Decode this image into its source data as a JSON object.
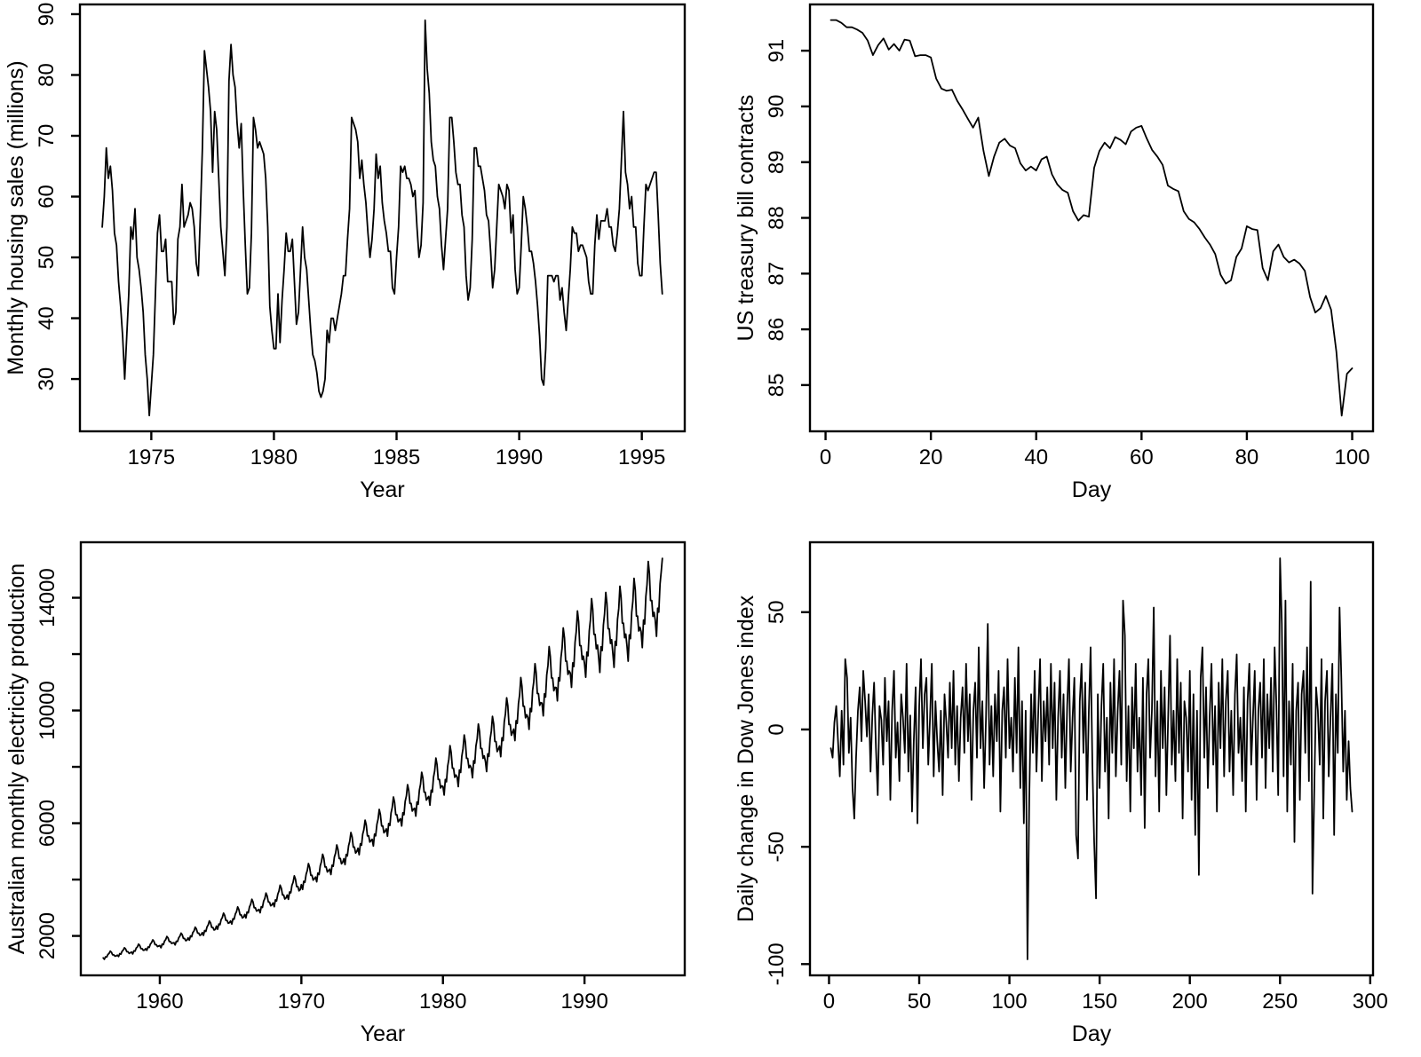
{
  "figure": {
    "background": "#ffffff",
    "line_color": "#000000",
    "tick_font_px": 24,
    "axis_title_font_px": 25
  },
  "chart_data": [
    {
      "type": "line",
      "name": "monthly-housing-sales",
      "title": "",
      "xlabel": "Year",
      "ylabel": "Monthly housing sales (millions)",
      "x_start": 1973.0,
      "x_step": 0.0833333,
      "xlim": [
        1972.09,
        1996.75
      ],
      "ylim": [
        21.4,
        91.6
      ],
      "grid": false,
      "legend": "none",
      "xticks": [
        {
          "v": 1975,
          "l": "1975"
        },
        {
          "v": 1980,
          "l": "1980"
        },
        {
          "v": 1985,
          "l": "1985"
        },
        {
          "v": 1990,
          "l": "1990"
        },
        {
          "v": 1995,
          "l": "1995"
        }
      ],
      "yticks": [
        {
          "v": 30,
          "l": "30"
        },
        {
          "v": 40,
          "l": "40"
        },
        {
          "v": 50,
          "l": "50"
        },
        {
          "v": 60,
          "l": "60"
        },
        {
          "v": 70,
          "l": "70"
        },
        {
          "v": 80,
          "l": "80"
        },
        {
          "v": 90,
          "l": "90"
        }
      ],
      "values": [
        55,
        60,
        68,
        63,
        65,
        61,
        54,
        52,
        46,
        42,
        37,
        30,
        37,
        44,
        55,
        53,
        58,
        50,
        48,
        45,
        41,
        34,
        30,
        24,
        29,
        34,
        44,
        54,
        57,
        51,
        51,
        53,
        46,
        46,
        46,
        39,
        41,
        53,
        55,
        62,
        55,
        56,
        57,
        59,
        58,
        55,
        49,
        47,
        57,
        68,
        84,
        81,
        78,
        74,
        64,
        74,
        71,
        63,
        55,
        51,
        47,
        55,
        79,
        85,
        80,
        78,
        72,
        68,
        72,
        61,
        52,
        44,
        45,
        54,
        73,
        71,
        68,
        69,
        68,
        67,
        63,
        55,
        42,
        38,
        35,
        35,
        44,
        36,
        43,
        48,
        54,
        51,
        51,
        53,
        46,
        39,
        41,
        48,
        55,
        50,
        48,
        43,
        38,
        34,
        33,
        31,
        28,
        27,
        28,
        30,
        38,
        36,
        40,
        40,
        38,
        40,
        42,
        44,
        47,
        47,
        53,
        58,
        73,
        72,
        71,
        69,
        63,
        66,
        62,
        59,
        54,
        50,
        53,
        58,
        67,
        63,
        65,
        59,
        56,
        54,
        51,
        51,
        45,
        44,
        50,
        55,
        65,
        64,
        65,
        63,
        63,
        62,
        60,
        61,
        55,
        50,
        52,
        59,
        89,
        81,
        77,
        69,
        66,
        65,
        60,
        58,
        52,
        48,
        53,
        58,
        73,
        73,
        69,
        64,
        62,
        62,
        57,
        55,
        47,
        43,
        45,
        53,
        68,
        68,
        65,
        65,
        63,
        61,
        57,
        56,
        51,
        45,
        48,
        55,
        62,
        61,
        60,
        58,
        62,
        61,
        54,
        57,
        48,
        44,
        45,
        52,
        60,
        58,
        55,
        51,
        51,
        49,
        46,
        42,
        37,
        30,
        29,
        35,
        47,
        47,
        47,
        46,
        47,
        47,
        43,
        45,
        41,
        38,
        43,
        48,
        55,
        54,
        54,
        51,
        52,
        52,
        51,
        50,
        46,
        44,
        44,
        52,
        57,
        53,
        56,
        56,
        56,
        58,
        55,
        55,
        52,
        51,
        54,
        58,
        66,
        74,
        64,
        62,
        58,
        60,
        55,
        55,
        49,
        47,
        47,
        55,
        62,
        61,
        62,
        63,
        64,
        64,
        57,
        49,
        44
      ]
    },
    {
      "type": "line",
      "name": "us-treasury-bill-contracts",
      "title": "",
      "xlabel": "Day",
      "ylabel": "US treasury bill contracts",
      "x_start": 1,
      "x_step": 1,
      "xlim": [
        -2.96,
        103.96
      ],
      "ylim": [
        84.17,
        91.83
      ],
      "grid": false,
      "legend": "none",
      "xticks": [
        {
          "v": 0,
          "l": "0"
        },
        {
          "v": 20,
          "l": "20"
        },
        {
          "v": 40,
          "l": "40"
        },
        {
          "v": 60,
          "l": "60"
        },
        {
          "v": 80,
          "l": "80"
        },
        {
          "v": 100,
          "l": "100"
        }
      ],
      "yticks": [
        {
          "v": 85,
          "l": "85"
        },
        {
          "v": 86,
          "l": "86"
        },
        {
          "v": 87,
          "l": "87"
        },
        {
          "v": 88,
          "l": "88"
        },
        {
          "v": 89,
          "l": "89"
        },
        {
          "v": 90,
          "l": "90"
        },
        {
          "v": 91,
          "l": "91"
        }
      ],
      "values": [
        91.55,
        91.55,
        91.5,
        91.42,
        91.42,
        91.38,
        91.32,
        91.18,
        90.92,
        91.1,
        91.22,
        91.02,
        91.12,
        91.0,
        91.2,
        91.18,
        90.9,
        90.92,
        90.92,
        90.88,
        90.5,
        90.32,
        90.28,
        90.3,
        90.1,
        89.95,
        89.78,
        89.62,
        89.8,
        89.2,
        88.75,
        89.1,
        89.35,
        89.42,
        89.3,
        89.25,
        88.98,
        88.85,
        88.92,
        88.85,
        89.05,
        89.1,
        88.78,
        88.6,
        88.5,
        88.45,
        88.12,
        87.95,
        88.05,
        88.02,
        88.9,
        89.2,
        89.35,
        89.25,
        89.45,
        89.4,
        89.32,
        89.55,
        89.62,
        89.65,
        89.42,
        89.22,
        89.1,
        88.95,
        88.58,
        88.52,
        88.48,
        88.12,
        87.98,
        87.92,
        87.8,
        87.65,
        87.52,
        87.35,
        86.98,
        86.82,
        86.88,
        87.3,
        87.45,
        87.85,
        87.8,
        87.78,
        87.1,
        86.88,
        87.4,
        87.52,
        87.3,
        87.2,
        87.25,
        87.18,
        87.05,
        86.58,
        86.3,
        86.38,
        86.6,
        86.35,
        85.6,
        84.45,
        85.2,
        85.3
      ]
    },
    {
      "type": "line",
      "name": "australian-electricity-production",
      "title": "",
      "xlabel": "Year",
      "ylabel": "Australian monthly electricity production",
      "x_start": 1956.0,
      "x_step": 0.0833333,
      "xlim": [
        1954.42,
        1997.08
      ],
      "ylim": [
        601,
        15969
      ],
      "grid": false,
      "legend": "none",
      "xticks": [
        {
          "v": 1960,
          "l": "1960"
        },
        {
          "v": 1970,
          "l": "1970"
        },
        {
          "v": 1980,
          "l": "1980"
        },
        {
          "v": 1990,
          "l": "1990"
        }
      ],
      "yticks": [
        {
          "v": 2000,
          "l": "2000"
        },
        {
          "v": 4000,
          "l": ""
        },
        {
          "v": 6000,
          "l": "6000"
        },
        {
          "v": 8000,
          "l": ""
        },
        {
          "v": 10000,
          "l": "10000"
        },
        {
          "v": 12000,
          "l": ""
        },
        {
          "v": 14000,
          "l": "14000"
        }
      ],
      "values": [
        1220,
        1170,
        1260,
        1250,
        1340,
        1380,
        1460,
        1420,
        1330,
        1330,
        1280,
        1290,
        1320,
        1270,
        1370,
        1350,
        1450,
        1500,
        1580,
        1540,
        1440,
        1440,
        1380,
        1400,
        1430,
        1360,
        1470,
        1460,
        1570,
        1610,
        1710,
        1660,
        1550,
        1550,
        1490,
        1500,
        1550,
        1490,
        1610,
        1590,
        1710,
        1760,
        1860,
        1810,
        1690,
        1690,
        1620,
        1640,
        1660,
        1580,
        1710,
        1690,
        1820,
        1870,
        1980,
        1930,
        1800,
        1800,
        1730,
        1750,
        1760,
        1680,
        1810,
        1800,
        1930,
        1990,
        2100,
        2040,
        1910,
        1910,
        1830,
        1850,
        1930,
        1850,
        2000,
        1970,
        2120,
        2180,
        2310,
        2250,
        2100,
        2100,
        2020,
        2040,
        2120,
        2020,
        2190,
        2160,
        2320,
        2390,
        2530,
        2460,
        2300,
        2300,
        2210,
        2230,
        2350,
        2240,
        2420,
        2400,
        2580,
        2650,
        2810,
        2730,
        2550,
        2550,
        2450,
        2470,
        2530,
        2420,
        2610,
        2590,
        2780,
        2860,
        3030,
        2940,
        2750,
        2750,
        2640,
        2670,
        2760,
        2640,
        2850,
        2820,
        3030,
        3120,
        3300,
        3210,
        3000,
        3000,
        2880,
        2910,
        2940,
        2820,
        3040,
        3010,
        3230,
        3330,
        3520,
        3420,
        3200,
        3200,
        3070,
        3100,
        3170,
        3040,
        3280,
        3240,
        3480,
        3590,
        3800,
        3690,
        3450,
        3450,
        3310,
        3350,
        3450,
        3300,
        3560,
        3530,
        3790,
        3900,
        4130,
        4010,
        3750,
        3750,
        3600,
        3640,
        3820,
        3650,
        3940,
        3900,
        4190,
        4320,
        4570,
        4440,
        4150,
        4150,
        3980,
        4030,
        4090,
        3920,
        4230,
        4180,
        4490,
        4630,
        4900,
        4760,
        4450,
        4450,
        4270,
        4320,
        4370,
        4180,
        4510,
        4470,
        4800,
        4940,
        5230,
        5080,
        4750,
        4750,
        4560,
        4610,
        4740,
        4530,
        4890,
        4840,
        5200,
        5360,
        5670,
        5510,
        5150,
        5150,
        4940,
        5000,
        5110,
        4880,
        5270,
        5220,
        5610,
        5770,
        6110,
        5940,
        5550,
        5550,
        5330,
        5380,
        5430,
        5190,
        5610,
        5550,
        5960,
        6140,
        6490,
        6310,
        5900,
        5900,
        5660,
        5720,
        5800,
        5540,
        5990,
        5920,
        6360,
        6550,
        6930,
        6740,
        6300,
        6300,
        6050,
        6110,
        6160,
        5900,
        6370,
        6300,
        6770,
        6970,
        7370,
        7170,
        6700,
        6700,
        6430,
        6500,
        6530,
        6250,
        6750,
        6670,
        7170,
        7380,
        7810,
        7600,
        7100,
        7100,
        6820,
        6890,
        6950,
        6640,
        7170,
        7100,
        7630,
        7850,
        8310,
        8080,
        7550,
        7550,
        7250,
        7320,
        7310,
        7000,
        7550,
        7470,
        8030,
        8270,
        8750,
        8510,
        7950,
        7950,
        7630,
        7710,
        7640,
        7300,
        7890,
        7800,
        8380,
        8630,
        9130,
        8880,
        8300,
        8300,
        7970,
        8050,
        7960,
        7610,
        8220,
        8130,
        8740,
        9000,
        9520,
        9260,
        8650,
        8650,
        8300,
        8390,
        8190,
        7830,
        8460,
        8370,
        8990,
        9260,
        9790,
        9520,
        8900,
        8900,
        8540,
        8630,
        8740,
        8360,
        9030,
        8930,
        9600,
        9880,
        10450,
        10170,
        9500,
        9500,
        9120,
        9220,
        9340,
        8930,
        9640,
        9540,
        10250,
        10560,
        11170,
        10860,
        10150,
        10150,
        9740,
        9850,
        9750,
        9330,
        10070,
        9960,
        10710,
        11020,
        11660,
        11340,
        10600,
        10600,
        10180,
        10280,
        10260,
        9810,
        10590,
        10480,
        11260,
        11600,
        12270,
        11930,
        11150,
        11150,
        10700,
        10820,
        10810,
        10340,
        11160,
        11050,
        11870,
        12220,
        12930,
        12570,
        11750,
        11750,
        11280,
        11400,
        11320,
        10820,
        11690,
        11560,
        12420,
        12790,
        13530,
        13160,
        12300,
        12300,
        11810,
        11930,
        11680,
        11180,
        12070,
        11940,
        12830,
        13210,
        13970,
        13590,
        12700,
        12700,
        12190,
        12320,
        11870,
        11350,
        12260,
        12130,
        13030,
        13420,
        14190,
        13800,
        12900,
        12900,
        12380,
        12510,
        12050,
        11530,
        12450,
        12310,
        13230,
        13620,
        14410,
        14020,
        13100,
        13100,
        12580,
        12710,
        12280,
        11750,
        12680,
        12550,
        13480,
        13880,
        14690,
        14280,
        13350,
        13350,
        12820,
        12950,
        12790,
        12230,
        13210,
        13070,
        14040,
        14460,
        15290,
        14870,
        13900,
        13900,
        13340,
        13480,
        13200,
        12630,
        13630,
        13490,
        14490,
        14920,
        15400
      ]
    },
    {
      "type": "line",
      "name": "dow-jones-daily-change",
      "title": "",
      "xlabel": "Day",
      "ylabel": "Daily change in Dow Jones index",
      "x_start": 1,
      "x_step": 1,
      "xlim": [
        -10.56,
        301.56
      ],
      "ylim": [
        -104.8,
        79.8
      ],
      "grid": false,
      "legend": "none",
      "xticks": [
        {
          "v": 0,
          "l": "0"
        },
        {
          "v": 50,
          "l": "50"
        },
        {
          "v": 100,
          "l": "100"
        },
        {
          "v": 150,
          "l": "150"
        },
        {
          "v": 200,
          "l": "200"
        },
        {
          "v": 250,
          "l": "250"
        },
        {
          "v": 300,
          "l": "300"
        }
      ],
      "yticks": [
        {
          "v": -100,
          "l": "-100"
        },
        {
          "v": -50,
          "l": "-50"
        },
        {
          "v": 0,
          "l": "0"
        },
        {
          "v": 50,
          "l": "50"
        }
      ],
      "values": [
        -8,
        -12,
        3,
        10,
        -5,
        -20,
        8,
        -15,
        30,
        22,
        -10,
        5,
        -25,
        -38,
        -12,
        8,
        18,
        -5,
        25,
        12,
        -3,
        15,
        -18,
        6,
        20,
        -8,
        -28,
        10,
        4,
        -15,
        22,
        -5,
        12,
        -30,
        8,
        25,
        -12,
        3,
        -22,
        15,
        5,
        -10,
        28,
        -18,
        6,
        -35,
        -5,
        18,
        -40,
        10,
        30,
        -8,
        15,
        22,
        -15,
        5,
        28,
        -20,
        12,
        -5,
        -18,
        8,
        -28,
        15,
        3,
        -12,
        20,
        -8,
        25,
        -15,
        10,
        -22,
        5,
        18,
        -10,
        28,
        -5,
        15,
        -30,
        8,
        20,
        -12,
        35,
        -8,
        12,
        -25,
        5,
        45,
        -15,
        10,
        -20,
        15,
        -5,
        25,
        -35,
        8,
        18,
        -12,
        30,
        -8,
        5,
        -18,
        22,
        -10,
        35,
        -25,
        12,
        -40,
        8,
        -98,
        -30,
        15,
        -10,
        25,
        -18,
        8,
        30,
        -22,
        12,
        -5,
        18,
        -15,
        28,
        -8,
        20,
        -30,
        5,
        25,
        -12,
        15,
        -25,
        10,
        30,
        -18,
        5,
        22,
        -45,
        -55,
        12,
        28,
        -10,
        20,
        -30,
        8,
        35,
        -15,
        -48,
        -72,
        15,
        -25,
        10,
        28,
        -18,
        5,
        -38,
        20,
        -10,
        30,
        -20,
        8,
        25,
        -15,
        55,
        40,
        -22,
        10,
        -35,
        18,
        -8,
        28,
        -18,
        5,
        -28,
        22,
        -42,
        15,
        30,
        -12,
        8,
        52,
        -20,
        12,
        -35,
        25,
        -8,
        18,
        -28,
        5,
        40,
        -15,
        8,
        -22,
        30,
        -10,
        20,
        -38,
        12,
        5,
        -18,
        25,
        -30,
        15,
        -45,
        8,
        -62,
        22,
        35,
        -12,
        18,
        -25,
        5,
        28,
        -15,
        10,
        -35,
        20,
        -8,
        30,
        -20,
        12,
        25,
        -18,
        8,
        -28,
        15,
        32,
        -10,
        5,
        -22,
        18,
        -35,
        12,
        28,
        -15,
        5,
        25,
        -30,
        8,
        20,
        -12,
        30,
        -25,
        15,
        -8,
        22,
        -18,
        35,
        10,
        -28,
        73,
        45,
        -20,
        55,
        -35,
        12,
        -15,
        28,
        -48,
        8,
        20,
        -30,
        15,
        25,
        -10,
        35,
        -22,
        63,
        -70,
        -25,
        18,
        8,
        -15,
        30,
        -38,
        12,
        25,
        -20,
        5,
        28,
        -45,
        15,
        -10,
        52,
        22,
        -18,
        8,
        -30,
        -5,
        -25,
        -35
      ]
    }
  ]
}
